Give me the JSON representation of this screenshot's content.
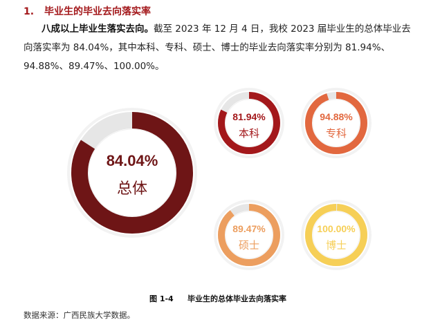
{
  "section": {
    "number": "1.",
    "title": "毕业生的毕业去向落实率"
  },
  "paragraph": {
    "lead": "八成以上毕业生落实去向。",
    "body": "截至 2023 年 12 月 4 日，我校 2023 届毕业生的总体毕业去向落实率为 84.04%，其中本科、专科、硕士、博士的毕业去向落实率分别为 81.94%、94.88%、89.47%、100.00%。"
  },
  "figure": {
    "number": "图 1-4",
    "title": "毕业生的总体毕业去向落实率"
  },
  "source": "数据来源：广西民族大学数据。",
  "chart_data": {
    "type": "pie",
    "subtype": "donut",
    "title": "毕业生的总体毕业去向落实率",
    "series": [
      {
        "name": "总体",
        "value": 84.04,
        "label": "84.04%",
        "color": "#6e1516"
      },
      {
        "name": "本科",
        "value": 81.94,
        "label": "81.94%",
        "color": "#a3181b"
      },
      {
        "name": "专科",
        "value": 94.88,
        "label": "94.88%",
        "color": "#e2683f"
      },
      {
        "name": "硕士",
        "value": 89.47,
        "label": "89.47%",
        "color": "#ec9e5f"
      },
      {
        "name": "博士",
        "value": 100.0,
        "label": "100.00%",
        "color": "#f6cf57"
      }
    ],
    "remainder_color": "#e6e6e6",
    "unit": "%"
  }
}
